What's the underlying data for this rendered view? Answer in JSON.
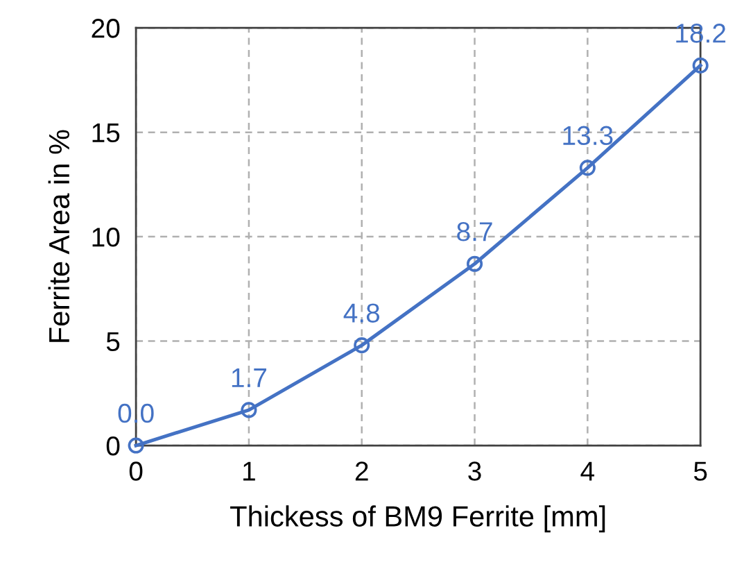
{
  "chart_data": {
    "type": "line",
    "xlabel": "Thickess of BM9 Ferrite [mm]",
    "ylabel": "Ferrite Area in %",
    "x": [
      0,
      1,
      2,
      3,
      4,
      5
    ],
    "series": [
      {
        "color": "#4472c4",
        "values": [
          0.0,
          1.7,
          4.8,
          8.7,
          13.3,
          18.2
        ],
        "value_labels": [
          "0.0",
          "1.7",
          "4.8",
          "8.7",
          "13.3",
          "18.2"
        ]
      }
    ],
    "xlim": [
      0,
      5
    ],
    "xticks": [
      0,
      1,
      2,
      3,
      4,
      5
    ],
    "ylim": [
      0,
      20
    ],
    "yticks": [
      0,
      5,
      10,
      15,
      20
    ],
    "grid": true,
    "marker": "circle",
    "line_style": "solid",
    "legend": false
  }
}
